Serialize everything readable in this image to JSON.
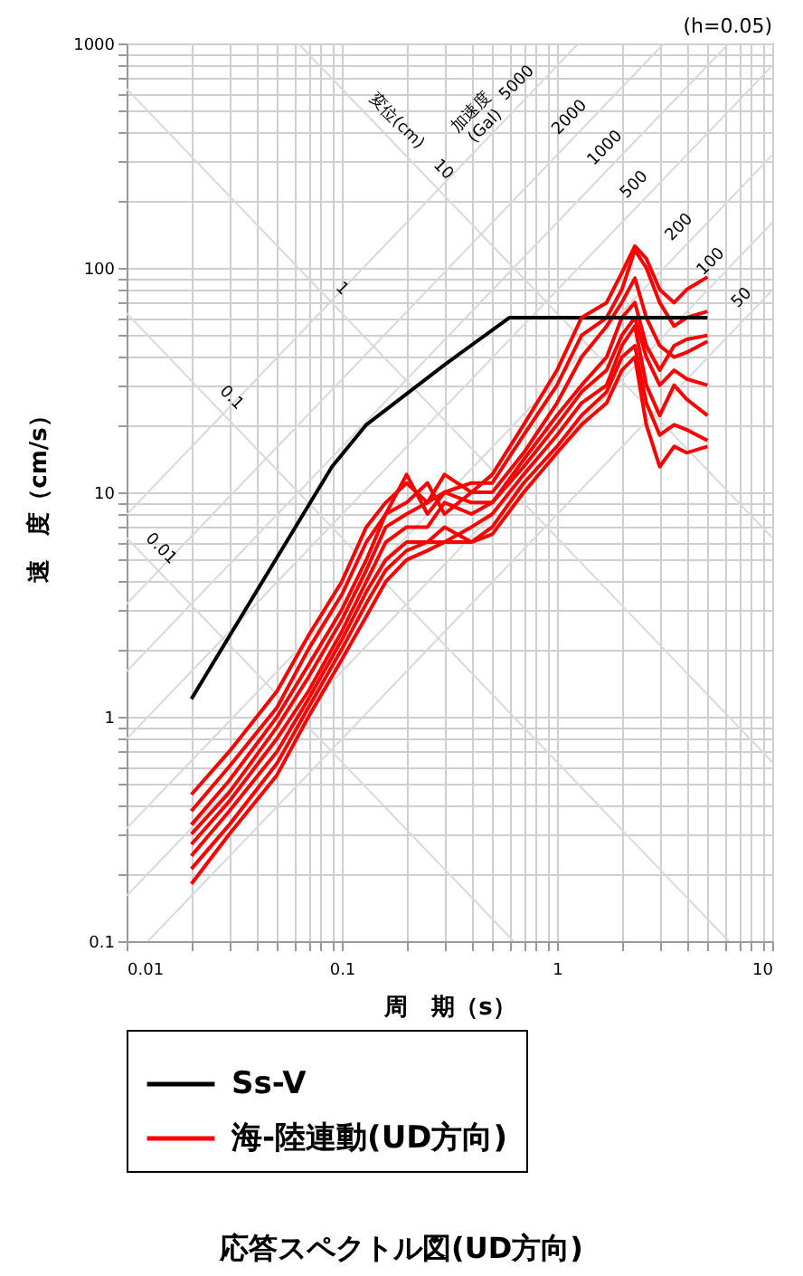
{
  "chart_data": {
    "type": "line",
    "title": "応答スペクトル図(UD方向)",
    "xlabel": "周　期（s）",
    "ylabel": "速　度（cm/s）",
    "log": "xy",
    "grid": true,
    "legend": "bottom",
    "marker": "none",
    "line_style": "solid",
    "xlim": [
      0.01,
      10
    ],
    "ylim": [
      0.1,
      1000
    ],
    "xticks": [
      0.01,
      {
        "value": 0.02,
        "label": null
      },
      {
        "value": 0.03,
        "label": null
      },
      {
        "value": 0.04,
        "label": null
      },
      {
        "value": 0.05,
        "label": null
      },
      {
        "value": 0.06,
        "label": null
      },
      {
        "value": 0.07,
        "label": null
      },
      {
        "value": 0.08,
        "label": null
      },
      {
        "value": 0.09,
        "label": null
      },
      0.1,
      {
        "value": 0.2,
        "label": null
      },
      {
        "value": 0.3,
        "label": null
      },
      {
        "value": 0.4,
        "label": null
      },
      {
        "value": 0.5,
        "label": null
      },
      {
        "value": 0.6,
        "label": null
      },
      {
        "value": 0.7,
        "label": null
      },
      {
        "value": 0.8,
        "label": null
      },
      {
        "value": 0.9,
        "label": null
      },
      1,
      {
        "value": 2,
        "label": null
      },
      {
        "value": 3,
        "label": null
      },
      {
        "value": 4,
        "label": null
      },
      {
        "value": 5,
        "label": null
      },
      {
        "value": 6,
        "label": null
      },
      {
        "value": 7,
        "label": null
      },
      {
        "value": 8,
        "label": null
      },
      {
        "value": 9,
        "label": null
      },
      10
    ],
    "yticks": [
      0.1,
      {
        "value": 0.2,
        "label": null
      },
      {
        "value": 0.3,
        "label": null
      },
      {
        "value": 0.4,
        "label": null
      },
      {
        "value": 0.5,
        "label": null
      },
      {
        "value": 0.6,
        "label": null
      },
      {
        "value": 0.7,
        "label": null
      },
      {
        "value": 0.8,
        "label": null
      },
      {
        "value": 0.9,
        "label": null
      },
      1,
      {
        "value": 2,
        "label": null
      },
      {
        "value": 3,
        "label": null
      },
      {
        "value": 4,
        "label": null
      },
      {
        "value": 5,
        "label": null
      },
      {
        "value": 6,
        "label": null
      },
      {
        "value": 7,
        "label": null
      },
      {
        "value": 8,
        "label": null
      },
      {
        "value": 9,
        "label": null
      },
      10,
      {
        "value": 20,
        "label": null
      },
      {
        "value": 30,
        "label": null
      },
      {
        "value": 40,
        "label": null
      },
      {
        "value": 50,
        "label": null
      },
      {
        "value": 60,
        "label": null
      },
      {
        "value": 70,
        "label": null
      },
      {
        "value": 80,
        "label": null
      },
      {
        "value": 90,
        "label": null
      },
      100,
      {
        "value": 200,
        "label": null
      },
      {
        "value": 300,
        "label": null
      },
      {
        "value": 400,
        "label": null
      },
      {
        "value": 500,
        "label": null
      },
      {
        "value": 600,
        "label": null
      },
      {
        "value": 700,
        "label": null
      },
      {
        "value": 800,
        "label": null
      },
      {
        "value": 900,
        "label": null
      },
      1000
    ],
    "x": [
      0.02,
      0.03,
      0.05,
      0.07,
      0.1,
      0.13,
      0.16,
      0.2,
      0.25,
      0.3,
      0.4,
      0.5,
      0.7,
      1,
      1.3,
      1.7,
      2,
      2.3,
      2.6,
      3,
      3.5,
      4,
      5
    ],
    "series": [
      {
        "color": "#d9d9d9",
        "x": [
          0.01,
          0.628
        ],
        "values": [
          6.28,
          0.1
        ]
      },
      {
        "color": "#d9d9d9",
        "x": [
          0.01,
          6.28
        ],
        "values": [
          62.8,
          0.1
        ]
      },
      {
        "color": "#d9d9d9",
        "x": [
          0.01,
          10
        ],
        "values": [
          628,
          0.628
        ]
      },
      {
        "color": "#d9d9d9",
        "x": [
          0.0628,
          10
        ],
        "values": [
          1000,
          6.28
        ]
      },
      {
        "color": "#d9d9d9",
        "x": [
          0.01,
          1.257
        ],
        "values": [
          7.96,
          1000
        ]
      },
      {
        "color": "#d9d9d9",
        "x": [
          0.01,
          3.14
        ],
        "values": [
          3.18,
          1000
        ]
      },
      {
        "color": "#d9d9d9",
        "x": [
          0.01,
          6.28
        ],
        "values": [
          1.59,
          1000
        ]
      },
      {
        "color": "#d9d9d9",
        "x": [
          0.01,
          10
        ],
        "values": [
          0.796,
          796
        ]
      },
      {
        "color": "#d9d9d9",
        "x": [
          0.01,
          10
        ],
        "values": [
          0.318,
          318
        ]
      },
      {
        "color": "#d9d9d9",
        "x": [
          0.01,
          10
        ],
        "values": [
          0.159,
          159
        ]
      },
      {
        "color": "#d9d9d9",
        "x": [
          0.01257,
          10
        ],
        "values": [
          0.1,
          79.6
        ]
      },
      {
        "name": "Ss-V",
        "color": "#000000",
        "x": [
          0.02,
          0.09,
          0.13,
          0.3,
          0.6,
          5
        ],
        "values": [
          1.2,
          13,
          20,
          37,
          60,
          60
        ]
      },
      {
        "name": "海-陸連動(UD方向)",
        "color": "#ff0000",
        "values": [
          0.45,
          0.7,
          1.3,
          2.3,
          4,
          7,
          9,
          11,
          9,
          12,
          10,
          12,
          20,
          35,
          60,
          70,
          95,
          125,
          110,
          80,
          70,
          80,
          91
        ]
      },
      {
        "color": "#ff0000",
        "values": [
          0.38,
          0.6,
          1.1,
          2,
          3.5,
          6,
          8,
          12,
          8,
          10,
          11,
          11,
          18,
          30,
          50,
          60,
          80,
          120,
          100,
          70,
          55,
          60,
          64
        ]
      },
      {
        "color": "#ff0000",
        "values": [
          0.33,
          0.52,
          1.0,
          1.7,
          3,
          5,
          8,
          9,
          11,
          8,
          10,
          10,
          15,
          25,
          40,
          55,
          70,
          90,
          60,
          45,
          40,
          42,
          47
        ]
      },
      {
        "color": "#ff0000",
        "values": [
          0.3,
          0.46,
          0.9,
          1.5,
          2.7,
          4.5,
          7,
          8,
          9,
          10,
          9,
          9,
          14,
          22,
          30,
          40,
          60,
          70,
          45,
          35,
          45,
          48,
          50
        ]
      },
      {
        "color": "#ff0000",
        "values": [
          0.27,
          0.42,
          0.8,
          1.3,
          2.4,
          4,
          6,
          7,
          7,
          9,
          8,
          9,
          13,
          20,
          28,
          35,
          50,
          60,
          40,
          30,
          35,
          32,
          30
        ]
      },
      {
        "color": "#ff0000",
        "values": [
          0.24,
          0.38,
          0.7,
          1.2,
          2.2,
          3.6,
          5,
          6,
          6,
          6,
          7,
          8,
          12,
          18,
          25,
          30,
          45,
          55,
          30,
          22,
          30,
          26,
          22
        ]
      },
      {
        "color": "#ff0000",
        "values": [
          0.21,
          0.33,
          0.62,
          1.1,
          2,
          3.2,
          4.5,
          5.5,
          6,
          7,
          6,
          7,
          11,
          16,
          22,
          28,
          40,
          45,
          25,
          18,
          20,
          19,
          17
        ]
      },
      {
        "color": "#ff0000",
        "values": [
          0.18,
          0.3,
          0.55,
          1.0,
          1.8,
          2.8,
          4,
          5,
          5.5,
          6,
          6,
          6.5,
          10,
          15,
          20,
          25,
          35,
          40,
          20,
          13,
          16,
          15,
          16
        ]
      }
    ],
    "annotations": [
      "(h=0.05)",
      {
        "text": "変位(cm)",
        "x": 0.158,
        "y": 398
      },
      {
        "text": "10",
        "x": 0.26,
        "y": 242
      },
      {
        "text": "1",
        "x": 0.088,
        "y": 71.4
      },
      {
        "text": "0.1",
        "x": 0.027,
        "y": 23.3
      },
      {
        "text": "0.01",
        "x": 0.0127,
        "y": 4.95
      },
      {
        "text": "加速度\n(Gal)",
        "x": 0.5,
        "y": 398
      },
      {
        "text": "5000",
        "x": 0.74,
        "y": 589
      },
      {
        "text": "2000",
        "x": 1.3,
        "y": 414
      },
      {
        "text": "1000",
        "x": 1.9,
        "y": 302
      },
      {
        "text": "500",
        "x": 2.6,
        "y": 207
      },
      {
        "text": "200",
        "x": 4.2,
        "y": 134
      },
      {
        "text": "100",
        "x": 5.9,
        "y": 94
      },
      {
        "text": "50",
        "x": 8.2,
        "y": 65
      }
    ]
  }
}
